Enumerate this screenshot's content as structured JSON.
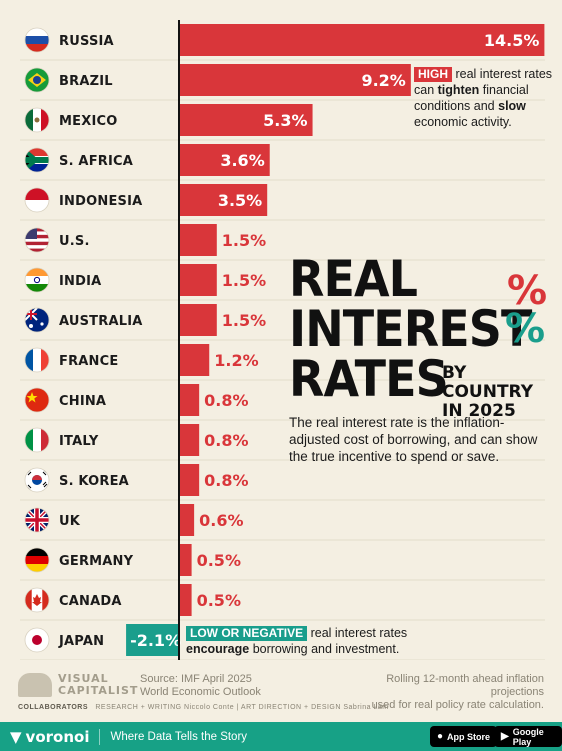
{
  "chart_data": {
    "type": "bar",
    "orientation": "horizontal",
    "title": "REAL INTEREST % RATES",
    "subtitle": "BY COUNTRY IN 2025",
    "categories": [
      "RUSSIA",
      "BRAZIL",
      "MEXICO",
      "S. AFRICA",
      "INDONESIA",
      "U.S.",
      "INDIA",
      "AUSTRALIA",
      "FRANCE",
      "CHINA",
      "ITALY",
      "S. KOREA",
      "UK",
      "GERMANY",
      "CANADA",
      "JAPAN"
    ],
    "values": [
      14.5,
      9.2,
      5.3,
      3.6,
      3.5,
      1.5,
      1.5,
      1.5,
      1.2,
      0.8,
      0.8,
      0.8,
      0.6,
      0.5,
      0.5,
      -2.1
    ],
    "value_labels": [
      "14.5%",
      "9.2%",
      "5.3%",
      "3.6%",
      "3.5%",
      "1.5%",
      "1.5%",
      "1.5%",
      "1.2%",
      "0.8%",
      "0.8%",
      "0.8%",
      "0.6%",
      "0.5%",
      "0.5%",
      "-2.1%"
    ],
    "colors": {
      "positive": "#d9363a",
      "negative": "#1a9e8c",
      "label_outside": "#d9363a"
    },
    "grid": true,
    "legend": "none"
  },
  "title": {
    "line1": "REAL",
    "line2": "INTEREST",
    "line3": "RATES",
    "pct_symbol": "%",
    "sub_line1": "BY COUNTRY",
    "sub_line2": "IN 2025",
    "description": "The real interest rate is the inflation-adjusted cost of borrowing, and can show the true incentive to spend or save."
  },
  "notes": {
    "high": {
      "tag": "HIGH",
      "pre": "real interest rates can",
      "b1": "tighten",
      "mid": "financial conditions",
      "and": "and",
      "b2": "slow",
      "post": "economic activity."
    },
    "low": {
      "tag": "LOW OR NEGATIVE",
      "pre": "real interest rates",
      "b1": "encourage",
      "post": "borrowing and investment."
    }
  },
  "flags": [
    "russia-flag",
    "brazil-flag",
    "mexico-flag",
    "south-africa-flag",
    "indonesia-flag",
    "us-flag",
    "india-flag",
    "australia-flag",
    "france-flag",
    "china-flag",
    "italy-flag",
    "south-korea-flag",
    "uk-flag",
    "germany-flag",
    "canada-flag",
    "japan-flag"
  ],
  "footer": {
    "logo_line1": "VISUAL",
    "logo_line2": "CAPITALIST",
    "source_line1": "Source: IMF April 2025",
    "source_line2": "World Economic Outlook",
    "method_line1": "Rolling 12-month ahead inflation projections",
    "method_line2": "used for real policy rate calculation.",
    "collab_label": "COLLABORATORS",
    "collab_text": "RESEARCH + WRITING Niccolo Conte  |  ART DIRECTION + DESIGN Sabrina Lam"
  },
  "bottom_bar": {
    "brand": "voronoi",
    "tagline": "Where Data Tells the Story",
    "appstore": "App Store",
    "googleplay": "Google Play"
  }
}
